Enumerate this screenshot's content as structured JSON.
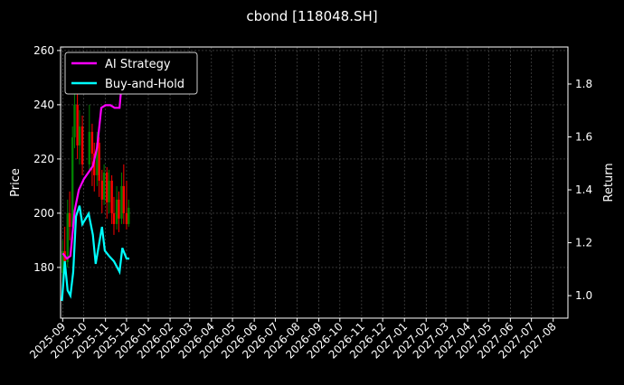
{
  "chart_data": {
    "type": "line",
    "title": "cbond [118048.SH]",
    "ylabel": "Price",
    "y2label": "Return",
    "ylim": [
      161.3,
      261.3
    ],
    "y2lim": [
      0.915,
      1.94
    ],
    "xlim": [
      "2025-08-29",
      "2027-08-22"
    ],
    "grid": true,
    "legend_position": "top-left",
    "x_ticks": [
      "2025-09",
      "2025-10",
      "2025-11",
      "2025-12",
      "2026-01",
      "2026-02",
      "2026-03",
      "2026-04",
      "2026-05",
      "2026-06",
      "2026-07",
      "2026-08",
      "2026-09",
      "2026-10",
      "2026-11",
      "2026-12",
      "2027-01",
      "2027-02",
      "2027-03",
      "2027-04",
      "2027-05",
      "2027-06",
      "2027-07",
      "2027-08"
    ],
    "y_ticks": [
      180,
      200,
      220,
      240,
      260
    ],
    "y2_ticks": [
      "1.0",
      "1.2",
      "1.4",
      "1.6",
      "1.8"
    ],
    "price_bars": [
      [
        "2025-09-01",
        178,
        186,
        172,
        190
      ],
      [
        "2025-09-04",
        186,
        182,
        178,
        195
      ],
      [
        "2025-09-08",
        182,
        200,
        180,
        205
      ],
      [
        "2025-09-11",
        200,
        195,
        190,
        208
      ],
      [
        "2025-09-15",
        195,
        228,
        193,
        232
      ],
      [
        "2025-09-18",
        228,
        240,
        224,
        248
      ],
      [
        "2025-09-22",
        240,
        225,
        220,
        244
      ],
      [
        "2025-09-25",
        225,
        232,
        218,
        238
      ],
      [
        "2025-09-29",
        232,
        218,
        214,
        236
      ],
      [
        "2025-10-09",
        218,
        230,
        215,
        240
      ],
      [
        "2025-10-13",
        230,
        222,
        210,
        233
      ],
      [
        "2025-10-16",
        222,
        214,
        208,
        226
      ],
      [
        "2025-10-20",
        214,
        226,
        210,
        230
      ],
      [
        "2025-10-23",
        226,
        212,
        206,
        228
      ],
      [
        "2025-10-27",
        212,
        205,
        200,
        216
      ],
      [
        "2025-10-30",
        205,
        215,
        203,
        218
      ],
      [
        "2025-11-03",
        215,
        204,
        198,
        217
      ],
      [
        "2025-11-06",
        204,
        212,
        200,
        216
      ],
      [
        "2025-11-10",
        212,
        200,
        196,
        214
      ],
      [
        "2025-11-13",
        200,
        196,
        192,
        206
      ],
      [
        "2025-11-17",
        196,
        205,
        194,
        210
      ],
      [
        "2025-11-20",
        205,
        198,
        193,
        208
      ],
      [
        "2025-11-24",
        198,
        210,
        196,
        215
      ],
      [
        "2025-11-27",
        210,
        200,
        196,
        218
      ],
      [
        "2025-12-01",
        200,
        196,
        194,
        212
      ],
      [
        "2025-12-04",
        196,
        202,
        195,
        205
      ]
    ],
    "series": [
      {
        "name": "AI Strategy",
        "color": "#ff00ff",
        "x": [
          "2025-09-01",
          "2025-09-07",
          "2025-09-12",
          "2025-09-18",
          "2025-09-24",
          "2025-10-01",
          "2025-10-14",
          "2025-10-20",
          "2025-10-26",
          "2025-11-01",
          "2025-11-08",
          "2025-11-14",
          "2025-11-21",
          "2025-11-25",
          "2025-11-29"
        ],
        "values": [
          1.16,
          1.14,
          1.15,
          1.32,
          1.4,
          1.44,
          1.49,
          1.56,
          1.71,
          1.72,
          1.72,
          1.71,
          1.71,
          1.83,
          1.9
        ]
      },
      {
        "name": "Buy-and-Hold",
        "color": "#00ffff",
        "x": [
          "2025-08-31",
          "2025-09-04",
          "2025-09-08",
          "2025-09-12",
          "2025-09-16",
          "2025-09-20",
          "2025-09-25",
          "2025-09-29",
          "2025-10-08",
          "2025-10-14",
          "2025-10-18",
          "2025-10-27",
          "2025-10-31",
          "2025-11-06",
          "2025-11-13",
          "2025-11-21",
          "2025-11-25",
          "2025-12-01",
          "2025-12-05"
        ],
        "values": [
          0.98,
          1.13,
          1.02,
          1.0,
          1.09,
          1.3,
          1.34,
          1.27,
          1.31,
          1.23,
          1.12,
          1.26,
          1.17,
          1.15,
          1.13,
          1.09,
          1.18,
          1.14,
          1.14
        ]
      }
    ],
    "colors": {
      "up": "#008000",
      "down": "#ff0000",
      "background": "#000000",
      "grid": "#555555"
    }
  }
}
